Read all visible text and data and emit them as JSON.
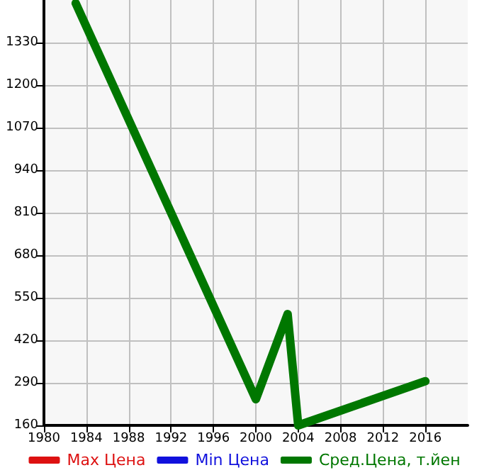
{
  "chart_data": {
    "type": "line",
    "x": [
      1983,
      2000,
      2003,
      2004,
      2016
    ],
    "series": [
      {
        "name": "Max Цена",
        "color": "#dd1111",
        "values": [
          null,
          null,
          null,
          null,
          null
        ]
      },
      {
        "name": "Min Цена",
        "color": "#1111dd",
        "values": [
          null,
          null,
          null,
          null,
          null
        ]
      },
      {
        "name": "Сред.Цена, т.йен",
        "color": "#007700",
        "values": [
          1450,
          240,
          500,
          160,
          295
        ]
      }
    ],
    "xlim": [
      1980,
      2020
    ],
    "xticks": [
      1980,
      1984,
      1988,
      1992,
      1996,
      2000,
      2004,
      2008,
      2012,
      2016
    ],
    "ylim": [
      160,
      1460
    ],
    "yticks": [
      160,
      290,
      420,
      550,
      680,
      810,
      940,
      1070,
      1200,
      1330
    ],
    "grid": true,
    "legend": "bottom",
    "marker": "none",
    "line_style": "solid"
  }
}
